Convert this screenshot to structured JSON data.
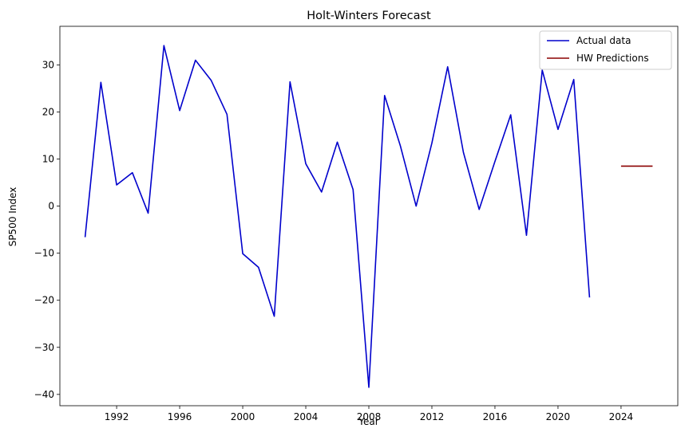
{
  "chart_data": {
    "type": "line",
    "title": "Holt-Winters Forecast",
    "xlabel": "Year",
    "ylabel": "SP500 Index",
    "xlim": [
      1988.4,
      2027.6
    ],
    "ylim": [
      -42.4,
      38.2
    ],
    "x_ticks": [
      1992,
      1996,
      2000,
      2004,
      2008,
      2012,
      2016,
      2020,
      2024
    ],
    "y_ticks": [
      -40,
      -30,
      -20,
      -10,
      0,
      10,
      20,
      30
    ],
    "grid": false,
    "legend_position": "top-right",
    "series": [
      {
        "name": "Actual data",
        "color": "#0000cc",
        "x": [
          1990,
          1991,
          1992,
          1993,
          1994,
          1995,
          1996,
          1997,
          1998,
          1999,
          2000,
          2001,
          2002,
          2003,
          2004,
          2005,
          2006,
          2007,
          2008,
          2009,
          2010,
          2011,
          2012,
          2013,
          2014,
          2015,
          2016,
          2017,
          2018,
          2019,
          2020,
          2021,
          2022
        ],
        "y": [
          -6.6,
          26.3,
          4.5,
          7.1,
          -1.5,
          34.1,
          20.3,
          31.0,
          26.7,
          19.5,
          -10.1,
          -13.0,
          -23.4,
          26.4,
          9.0,
          3.0,
          13.6,
          3.5,
          -38.5,
          23.5,
          12.8,
          0.0,
          13.4,
          29.6,
          11.4,
          -0.7,
          9.5,
          19.4,
          -6.2,
          28.9,
          16.3,
          26.9,
          -19.4
        ]
      },
      {
        "name": "HW Predictions",
        "color": "#8b0000",
        "x": [
          2024,
          2025,
          2026
        ],
        "y": [
          8.5,
          8.5,
          8.5
        ]
      }
    ]
  }
}
